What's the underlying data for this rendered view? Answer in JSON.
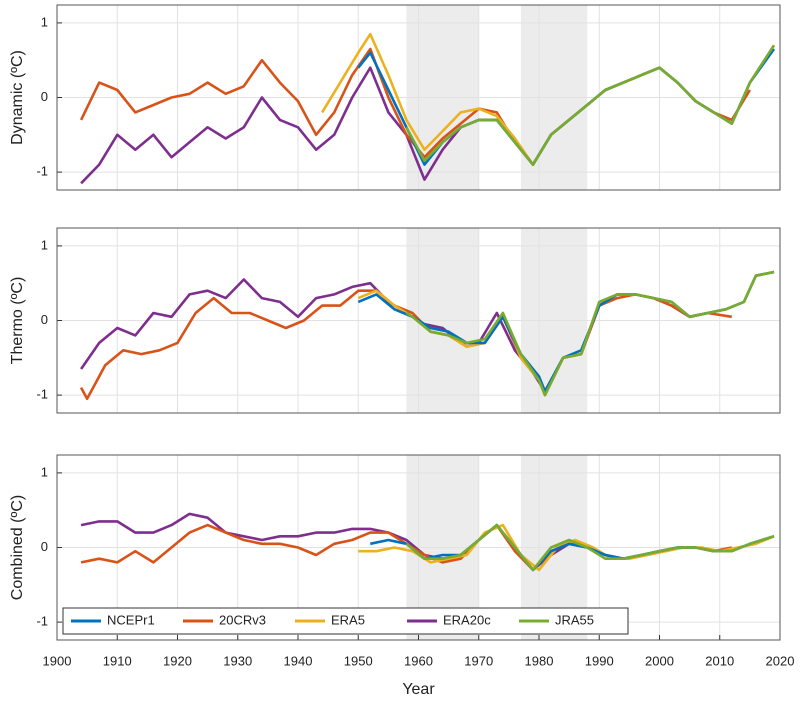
{
  "chart_data": [
    {
      "type": "line",
      "ylabel": "Dynamic (ºC)",
      "xlim": [
        1900,
        2020
      ],
      "ylim": [
        -1.24,
        1.24
      ],
      "yticks": [
        -1,
        0,
        1
      ],
      "xticks": [
        1900,
        1910,
        1920,
        1930,
        1940,
        1950,
        1960,
        1970,
        1980,
        1990,
        2000,
        2010,
        2020
      ],
      "grid": true,
      "shaded_periods": [
        [
          1958,
          1970
        ],
        [
          1977,
          1988
        ]
      ],
      "series": [
        {
          "color": "#7e2f8e",
          "x": [
            1904,
            1907,
            1910,
            1913,
            1916,
            1919,
            1922,
            1925,
            1928,
            1931,
            1934,
            1937,
            1940,
            1943,
            1946,
            1949,
            1952,
            1955,
            1958,
            1961,
            1964,
            1967,
            1970,
            1973,
            1976,
            1979,
            1982,
            1985,
            1988,
            1991,
            1994,
            1997,
            2000,
            2003,
            2006,
            2009
          ],
          "values": [
            -1.15,
            -0.9,
            -0.5,
            -0.7,
            -0.5,
            -0.8,
            -0.6,
            -0.4,
            -0.55,
            -0.4,
            0,
            -0.3,
            -0.4,
            -0.7,
            -0.5,
            0,
            0.4,
            -0.2,
            -0.5,
            -1.1,
            -0.7,
            -0.4,
            -0.3,
            -0.3,
            -0.6,
            -0.9,
            -0.5,
            -0.3,
            -0.1,
            0.1,
            0.2,
            0.3,
            0.4,
            0.2,
            -0.05,
            -0.2
          ]
        },
        {
          "color": "#d95319",
          "x": [
            1904,
            1907,
            1910,
            1913,
            1916,
            1919,
            1922,
            1925,
            1928,
            1931,
            1934,
            1937,
            1940,
            1943,
            1946,
            1949,
            1952,
            1955,
            1958,
            1961,
            1964,
            1967,
            1970,
            1973,
            1976,
            1979,
            1982,
            1985,
            1988,
            1991,
            1994,
            1997,
            2000,
            2003,
            2006,
            2009,
            2012,
            2015
          ],
          "values": [
            -0.3,
            0.2,
            0.1,
            -0.2,
            -0.1,
            0,
            0.05,
            0.2,
            0.05,
            0.15,
            0.5,
            0.2,
            -0.05,
            -0.5,
            -0.2,
            0.3,
            0.65,
            0,
            -0.5,
            -0.8,
            -0.55,
            -0.35,
            -0.15,
            -0.2,
            -0.6,
            -0.9,
            -0.5,
            -0.3,
            -0.1,
            0.1,
            0.2,
            0.3,
            0.4,
            0.2,
            -0.05,
            -0.2,
            -0.3,
            0.1
          ]
        },
        {
          "color": "#edb120",
          "x": [
            1944,
            1947,
            1950,
            1952,
            1955,
            1958,
            1961,
            1964,
            1967,
            1970,
            1973,
            1976,
            1979,
            1982,
            1985,
            1988,
            1991,
            1994,
            1997,
            2000,
            2003,
            2006,
            2009,
            2012,
            2015,
            2019
          ],
          "values": [
            -0.2,
            0.2,
            0.6,
            0.85,
            0.3,
            -0.3,
            -0.7,
            -0.45,
            -0.2,
            -0.15,
            -0.25,
            -0.55,
            -0.9,
            -0.5,
            -0.3,
            -0.1,
            0.1,
            0.2,
            0.3,
            0.4,
            0.2,
            -0.05,
            -0.2,
            -0.35,
            0.2,
            0.7
          ]
        },
        {
          "color": "#0072bd",
          "x": [
            1950,
            1952,
            1955,
            1958,
            1961,
            1964,
            1967,
            1970,
            1973,
            1976,
            1979,
            1982,
            1985,
            1988,
            1991,
            1994,
            1997,
            2000,
            2003,
            2006,
            2009,
            2012,
            2015,
            2019
          ],
          "values": [
            0.4,
            0.6,
            0.1,
            -0.4,
            -0.9,
            -0.6,
            -0.4,
            -0.3,
            -0.3,
            -0.6,
            -0.9,
            -0.5,
            -0.3,
            -0.1,
            0.1,
            0.2,
            0.3,
            0.4,
            0.2,
            -0.05,
            -0.2,
            -0.35,
            0.2,
            0.65
          ]
        },
        {
          "color": "#77ac30",
          "x": [
            1958,
            1961,
            1964,
            1967,
            1970,
            1973,
            1976,
            1979,
            1982,
            1985,
            1988,
            1991,
            1994,
            1997,
            2000,
            2003,
            2006,
            2009,
            2012,
            2015,
            2019
          ],
          "values": [
            -0.4,
            -0.85,
            -0.6,
            -0.4,
            -0.3,
            -0.3,
            -0.6,
            -0.9,
            -0.5,
            -0.3,
            -0.1,
            0.1,
            0.2,
            0.3,
            0.4,
            0.2,
            -0.05,
            -0.2,
            -0.35,
            0.2,
            0.7
          ]
        }
      ]
    },
    {
      "type": "line",
      "ylabel": "Thermo (ºC)",
      "xlim": [
        1900,
        2020
      ],
      "ylim": [
        -1.24,
        1.24
      ],
      "yticks": [
        -1,
        0,
        1
      ],
      "xticks": [
        1900,
        1910,
        1920,
        1930,
        1940,
        1950,
        1960,
        1970,
        1980,
        1990,
        2000,
        2010,
        2020
      ],
      "grid": true,
      "shaded_periods": [
        [
          1958,
          1970
        ],
        [
          1977,
          1988
        ]
      ],
      "series": [
        {
          "color": "#7e2f8e",
          "x": [
            1904,
            1907,
            1910,
            1913,
            1916,
            1919,
            1922,
            1925,
            1928,
            1931,
            1934,
            1937,
            1940,
            1943,
            1946,
            1949,
            1952,
            1955,
            1958,
            1961,
            1964,
            1967,
            1970,
            1973,
            1976,
            1979,
            1981,
            1984,
            1987,
            1990,
            1993,
            1996,
            1999,
            2002,
            2005,
            2008
          ],
          "values": [
            -0.65,
            -0.3,
            -0.1,
            -0.2,
            0.1,
            0.05,
            0.35,
            0.4,
            0.3,
            0.55,
            0.3,
            0.25,
            0.05,
            0.3,
            0.35,
            0.45,
            0.5,
            0.25,
            0.1,
            -0.05,
            -0.1,
            -0.3,
            -0.3,
            0.1,
            -0.4,
            -0.7,
            -0.95,
            -0.5,
            -0.45,
            0.2,
            0.35,
            0.35,
            0.3,
            0.2,
            0.05,
            0.1
          ]
        },
        {
          "color": "#d95319",
          "x": [
            1904,
            1905,
            1908,
            1911,
            1914,
            1917,
            1920,
            1923,
            1926,
            1929,
            1932,
            1935,
            1938,
            1941,
            1944,
            1947,
            1950,
            1953,
            1956,
            1959,
            1962,
            1965,
            1968,
            1971,
            1974,
            1977,
            1980,
            1981,
            1984,
            1987,
            1990,
            1993,
            1996,
            1999,
            2002,
            2005,
            2008,
            2012
          ],
          "values": [
            -0.9,
            -1.05,
            -0.6,
            -0.4,
            -0.45,
            -0.4,
            -0.3,
            0.1,
            0.3,
            0.1,
            0.1,
            0,
            -0.1,
            0,
            0.2,
            0.2,
            0.4,
            0.4,
            0.2,
            0.1,
            -0.15,
            -0.2,
            -0.35,
            -0.3,
            0.05,
            -0.5,
            -0.8,
            -1,
            -0.5,
            -0.45,
            0.2,
            0.3,
            0.35,
            0.3,
            0.2,
            0.05,
            0.1,
            0.05
          ]
        },
        {
          "color": "#edb120",
          "x": [
            1950,
            1953,
            1956,
            1959,
            1962,
            1965,
            1968,
            1971,
            1974,
            1977,
            1980,
            1981,
            1984,
            1987,
            1990,
            1993,
            1996,
            1999,
            2002,
            2005,
            2008,
            2011,
            2014,
            2016,
            2019
          ],
          "values": [
            0.3,
            0.4,
            0.2,
            0.05,
            -0.15,
            -0.2,
            -0.35,
            -0.3,
            0.1,
            -0.5,
            -0.8,
            -1,
            -0.5,
            -0.45,
            0.25,
            0.35,
            0.35,
            0.3,
            0.25,
            0.05,
            0.1,
            0.15,
            0.25,
            0.6,
            0.65
          ]
        },
        {
          "color": "#0072bd",
          "x": [
            1950,
            1953,
            1956,
            1959,
            1962,
            1965,
            1968,
            1971,
            1974,
            1977,
            1980,
            1981,
            1984,
            1987,
            1990,
            1993,
            1996,
            1999,
            2002,
            2005,
            2008,
            2011,
            2014,
            2016,
            2019
          ],
          "values": [
            0.25,
            0.35,
            0.15,
            0.05,
            -0.1,
            -0.15,
            -0.3,
            -0.3,
            0.05,
            -0.45,
            -0.75,
            -0.95,
            -0.5,
            -0.4,
            0.2,
            0.35,
            0.35,
            0.3,
            0.25,
            0.05,
            0.1,
            0.15,
            0.25,
            0.6,
            0.65
          ]
        },
        {
          "color": "#77ac30",
          "x": [
            1958,
            1959,
            1962,
            1965,
            1968,
            1971,
            1974,
            1977,
            1980,
            1981,
            1984,
            1987,
            1990,
            1993,
            1996,
            1999,
            2002,
            2005,
            2008,
            2011,
            2014,
            2016,
            2019
          ],
          "values": [
            0.1,
            0.05,
            -0.15,
            -0.2,
            -0.3,
            -0.25,
            0.1,
            -0.45,
            -0.8,
            -1,
            -0.5,
            -0.45,
            0.25,
            0.35,
            0.35,
            0.3,
            0.25,
            0.05,
            0.1,
            0.15,
            0.25,
            0.6,
            0.65
          ]
        }
      ]
    },
    {
      "type": "line",
      "ylabel": "Combined (ºC)",
      "xlabel": "Year",
      "xlim": [
        1900,
        2020
      ],
      "ylim": [
        -1.24,
        1.24
      ],
      "yticks": [
        -1,
        0,
        1
      ],
      "xticks": [
        1900,
        1910,
        1920,
        1930,
        1940,
        1950,
        1960,
        1970,
        1980,
        1990,
        2000,
        2010,
        2020
      ],
      "grid": true,
      "shaded_periods": [
        [
          1958,
          1970
        ],
        [
          1977,
          1988
        ]
      ],
      "series": [
        {
          "name": "ERA20c",
          "color": "#7e2f8e",
          "x": [
            1904,
            1907,
            1910,
            1913,
            1916,
            1919,
            1922,
            1925,
            1928,
            1931,
            1934,
            1937,
            1940,
            1943,
            1946,
            1949,
            1952,
            1955,
            1958,
            1961,
            1964,
            1967,
            1970,
            1973,
            1976,
            1979,
            1982,
            1985,
            1988,
            1991,
            1994,
            1997,
            2000,
            2003,
            2006,
            2009
          ],
          "values": [
            0.3,
            0.35,
            0.35,
            0.2,
            0.2,
            0.3,
            0.45,
            0.4,
            0.2,
            0.15,
            0.1,
            0.15,
            0.15,
            0.2,
            0.2,
            0.25,
            0.25,
            0.2,
            0.1,
            -0.1,
            -0.15,
            -0.1,
            0.1,
            0.3,
            0,
            -0.3,
            -0.1,
            0.05,
            0,
            -0.1,
            -0.15,
            -0.1,
            -0.05,
            0,
            0,
            -0.05
          ]
        },
        {
          "name": "20CRv3",
          "color": "#d95319",
          "x": [
            1904,
            1907,
            1910,
            1913,
            1916,
            1919,
            1922,
            1925,
            1928,
            1931,
            1934,
            1937,
            1940,
            1943,
            1946,
            1949,
            1952,
            1955,
            1958,
            1961,
            1964,
            1967,
            1970,
            1973,
            1976,
            1979,
            1982,
            1985,
            1988,
            1991,
            1994,
            1997,
            2000,
            2003,
            2006,
            2009,
            2012
          ],
          "values": [
            -0.2,
            -0.15,
            -0.2,
            -0.05,
            -0.2,
            0,
            0.2,
            0.3,
            0.2,
            0.1,
            0.05,
            0.05,
            0,
            -0.1,
            0.05,
            0.1,
            0.2,
            0.2,
            0.05,
            -0.1,
            -0.2,
            -0.15,
            0.1,
            0.3,
            -0.05,
            -0.3,
            -0.05,
            0.05,
            0,
            -0.1,
            -0.15,
            -0.1,
            -0.05,
            0,
            0,
            -0.05,
            0
          ]
        },
        {
          "name": "ERA5",
          "color": "#edb120",
          "x": [
            1950,
            1953,
            1956,
            1959,
            1962,
            1965,
            1968,
            1971,
            1974,
            1977,
            1980,
            1983,
            1986,
            1989,
            1992,
            1995,
            1998,
            2001,
            2004,
            2007,
            2010,
            2013,
            2016,
            2019
          ],
          "values": [
            -0.05,
            -0.05,
            0,
            -0.05,
            -0.2,
            -0.15,
            -0.1,
            0.2,
            0.3,
            -0.1,
            -0.3,
            0,
            0.1,
            0,
            -0.15,
            -0.15,
            -0.1,
            -0.05,
            0,
            0,
            -0.05,
            0,
            0.05,
            0.15
          ]
        },
        {
          "name": "NCEPr1",
          "color": "#0072bd",
          "x": [
            1952,
            1955,
            1958,
            1961,
            1964,
            1967,
            1970,
            1973,
            1976,
            1979,
            1982,
            1985,
            1988,
            1991,
            1994,
            1997,
            2000,
            2003,
            2006,
            2009,
            2012,
            2015,
            2019
          ],
          "values": [
            0.05,
            0.1,
            0.05,
            -0.15,
            -0.1,
            -0.1,
            0.1,
            0.3,
            0,
            -0.3,
            -0.05,
            0.05,
            0,
            -0.1,
            -0.15,
            -0.1,
            -0.05,
            0,
            0,
            -0.05,
            -0.05,
            0.05,
            0.15
          ]
        },
        {
          "name": "JRA55",
          "color": "#77ac30",
          "x": [
            1958,
            1961,
            1964,
            1967,
            1970,
            1973,
            1976,
            1979,
            1982,
            1985,
            1988,
            1991,
            1994,
            1997,
            2000,
            2003,
            2006,
            2009,
            2012,
            2015,
            2019
          ],
          "values": [
            0.05,
            -0.15,
            -0.15,
            -0.1,
            0.1,
            0.3,
            0,
            -0.3,
            0,
            0.1,
            0,
            -0.15,
            -0.15,
            -0.1,
            -0.05,
            0,
            0,
            -0.05,
            -0.05,
            0.05,
            0.15
          ]
        }
      ]
    }
  ]
}
